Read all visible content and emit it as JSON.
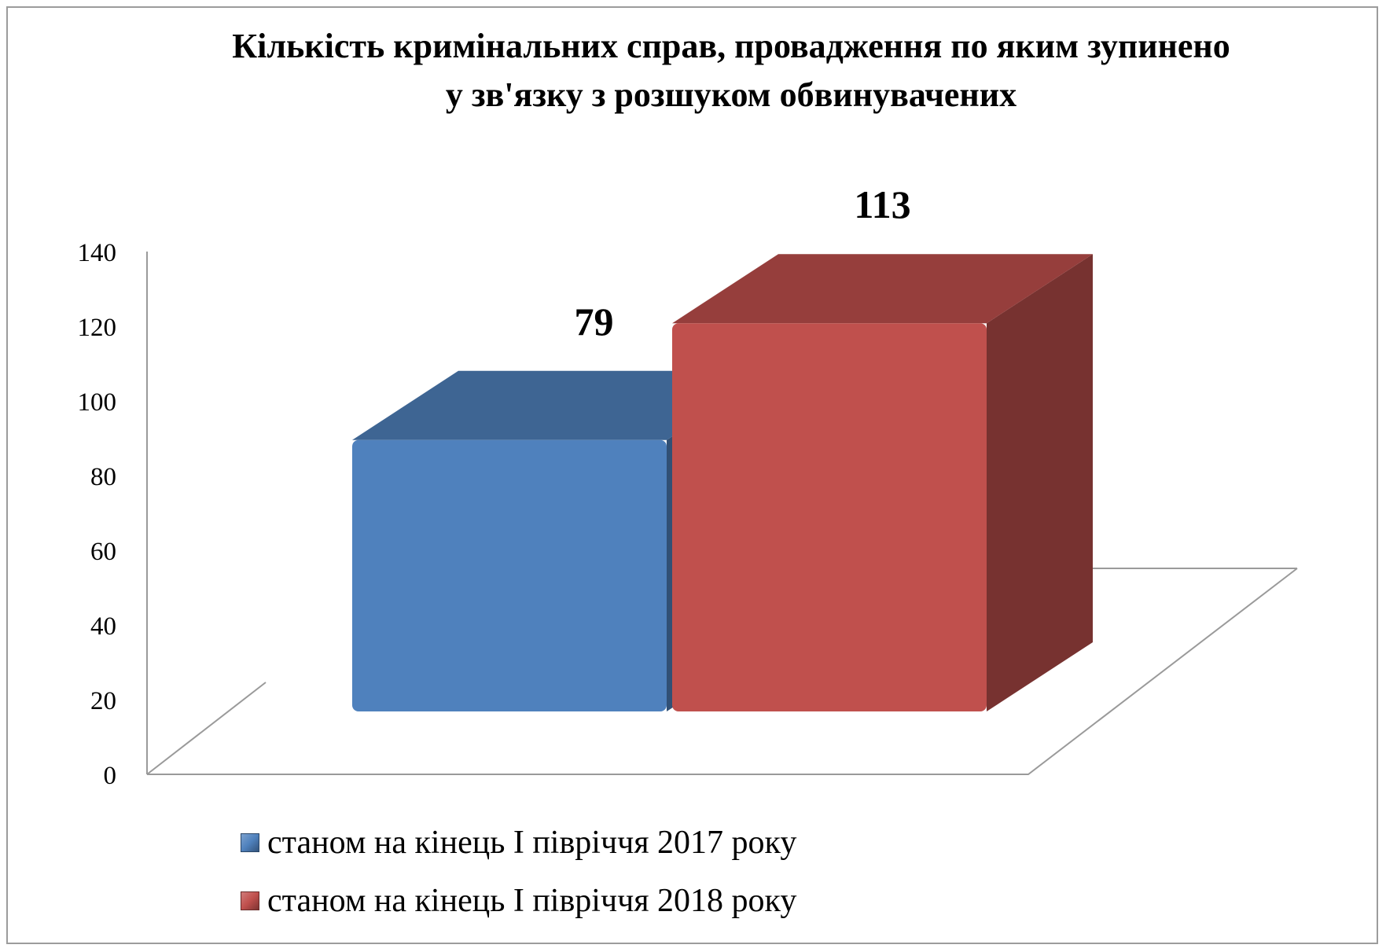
{
  "chart_data": {
    "type": "bar",
    "title": "Кількість кримінальних справ, провадження по яким зупинено у зв'язку з розшуком обвинувачених",
    "categories": [
      ""
    ],
    "series": [
      {
        "name": "станом на кінець І півріччя 2017 року",
        "values": [
          79
        ],
        "color": "#4f81bd"
      },
      {
        "name": "станом на кінець І півріччя 2018 року",
        "values": [
          113
        ],
        "color": "#c0504d"
      }
    ],
    "ylim": [
      0,
      140
    ],
    "yticks": [
      "0",
      "20",
      "40",
      "60",
      "80",
      "100",
      "120",
      "140"
    ],
    "data_labels": [
      "79",
      "113"
    ],
    "xlabel": "",
    "ylabel": "",
    "legend_position": "bottom",
    "grid": false,
    "style": "3d-column"
  }
}
